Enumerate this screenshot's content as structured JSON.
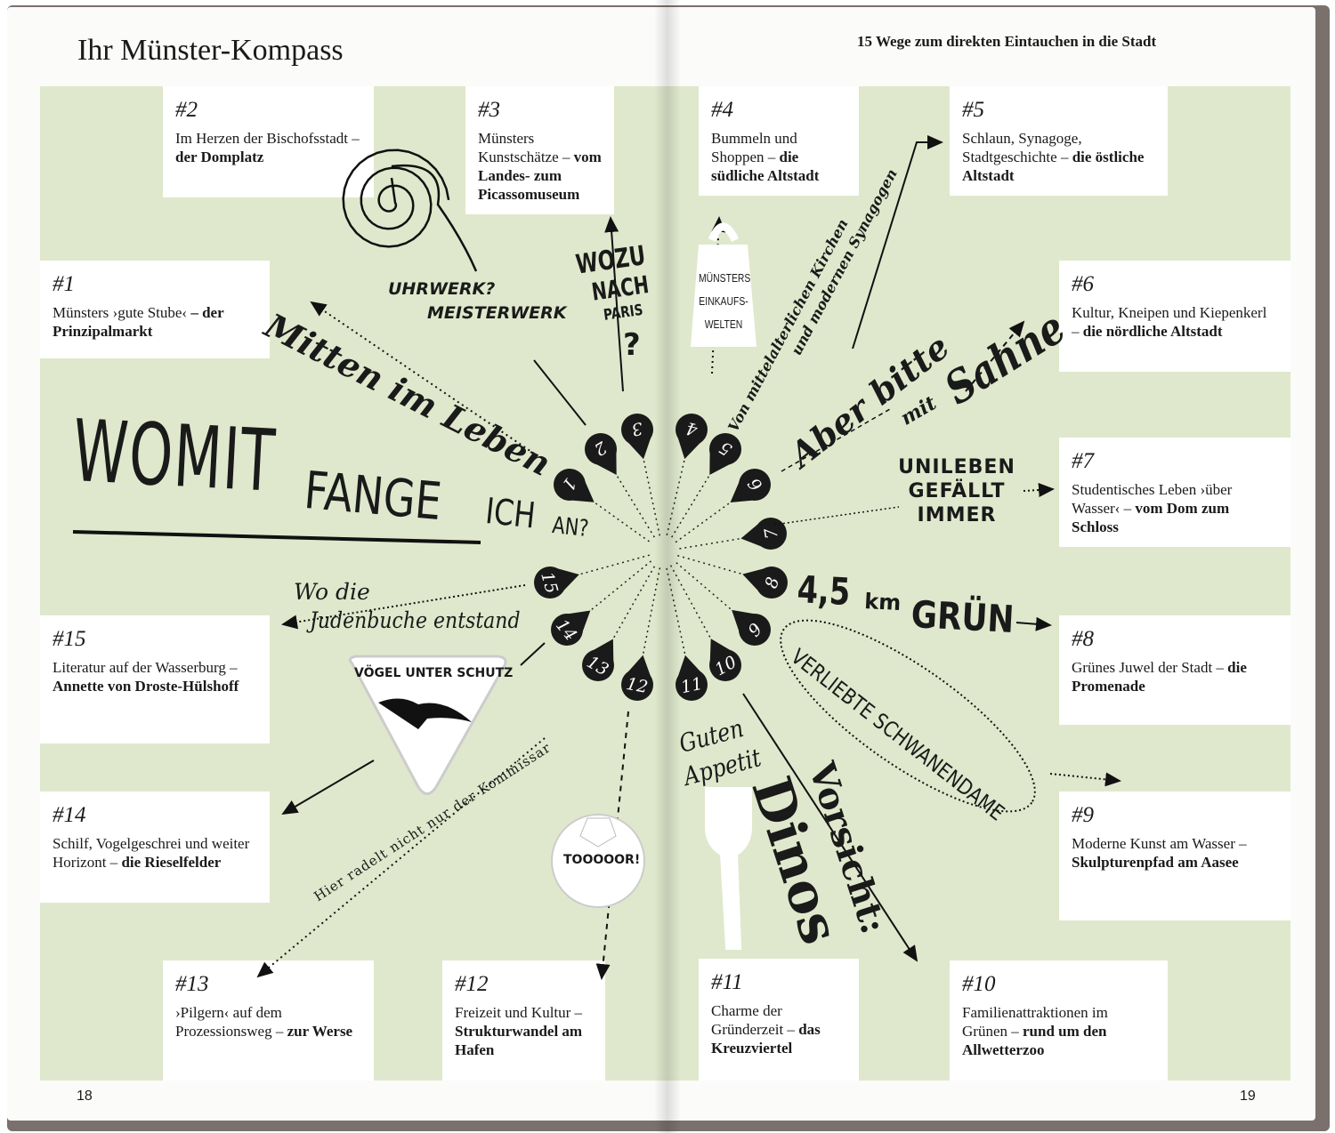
{
  "header": {
    "title": "Ihr Münster-Kompass",
    "subtitle": "15 Wege zum direkten Eintauchen in die Stadt"
  },
  "page_numbers": {
    "left": "18",
    "right": "19"
  },
  "cards": [
    {
      "num": "#1",
      "text": "Münsters ›gute Stube‹",
      "bold": "– der Prinzipalmarkt"
    },
    {
      "num": "#2",
      "text": "Im Herzen der Bischofsstadt –",
      "bold": "der Domplatz"
    },
    {
      "num": "#3",
      "text": "Münsters Kunstschätze –",
      "bold": "vom Landes- zum Picassomuseum"
    },
    {
      "num": "#4",
      "text": "Bummeln und Shoppen –",
      "bold": "die südliche Altstadt"
    },
    {
      "num": "#5",
      "text": "Schlaun, Synagoge, Stadtgeschichte –",
      "bold": "die östliche Altstadt"
    },
    {
      "num": "#6",
      "text": "Kultur, Kneipen und Kiepenkerl –",
      "bold": "die nördliche Altstadt"
    },
    {
      "num": "#7",
      "text": "Studentisches Leben ›über Wasser‹ –",
      "bold": "vom Dom zum Schloss"
    },
    {
      "num": "#8",
      "text": "Grünes Juwel der Stadt –",
      "bold": "die Promenade"
    },
    {
      "num": "#9",
      "text": "Moderne Kunst am Wasser –",
      "bold": "Skulpturenpfad am Aasee"
    },
    {
      "num": "#10",
      "text": "Familienattraktionen im Grünen –",
      "bold": "rund um den Allwetterzoo"
    },
    {
      "num": "#11",
      "text": "Charme der Gründerzeit –",
      "bold": "das Kreuzviertel"
    },
    {
      "num": "#12",
      "text": "Freizeit und Kultur –",
      "bold": "Strukturwandel am Hafen"
    },
    {
      "num": "#13",
      "text": "›Pilgern‹ auf dem Prozessionsweg –",
      "bold": "zur Werse"
    },
    {
      "num": "#14",
      "text": "Schilf, Vogelgeschrei und weiter Horizont –",
      "bold": "die Rieselfelder"
    },
    {
      "num": "#15",
      "text": "Literatur auf der Wasserburg –",
      "bold": "Annette von Droste-Hülshoff"
    }
  ],
  "pins": [
    "1",
    "2",
    "3",
    "4",
    "5",
    "6",
    "7",
    "8",
    "9",
    "10",
    "11",
    "12",
    "13",
    "14",
    "15"
  ],
  "graphics": {
    "headline_1": "WOMIT",
    "headline_2": "FANGE",
    "headline_3": "ICH",
    "headline_4": "AN?",
    "mitten": "Mitten im Leben",
    "uhrwerk_1": "UHRWERK?",
    "uhrwerk_2": "MEISTERWERK",
    "wozu_1": "WOZU",
    "wozu_2": "NACH",
    "wozu_3": "PARIS",
    "wozu_4": "?",
    "einkauf_1": "MÜNSTERS",
    "einkauf_2": "EINKAUFS-",
    "einkauf_3": "WELTEN",
    "kirchen_1": "Von mittelalterlichen Kirchen",
    "kirchen_2": "und modernen Synagogen",
    "sahne_1": "Aber bitte",
    "sahne_2": "mit",
    "sahne_3": "Sahne",
    "uni_1": "UNILEBEN",
    "uni_2": "GEFÄLLT",
    "uni_3": "IMMER",
    "gruen_1": "4,5",
    "gruen_2": "km",
    "gruen_3": "GRÜN",
    "schwan": "VERLIEBTE SCHWANENDAME",
    "dinos_1": "Vorsicht:",
    "dinos_2": "Dinos",
    "appetit_1": "Guten",
    "appetit_2": "Appetit",
    "tor": "TOOOOOR!",
    "kommissar": "Hier radelt nicht nur der Kommissar",
    "voegel": "VÖGEL UNTER SCHUTZ",
    "juden_1": "Wo die",
    "juden_2": "Judenbuche entstand"
  },
  "colors": {
    "green": "#dfe8cc",
    "pin": "#1a1a1a",
    "cover": "#7a706c"
  }
}
